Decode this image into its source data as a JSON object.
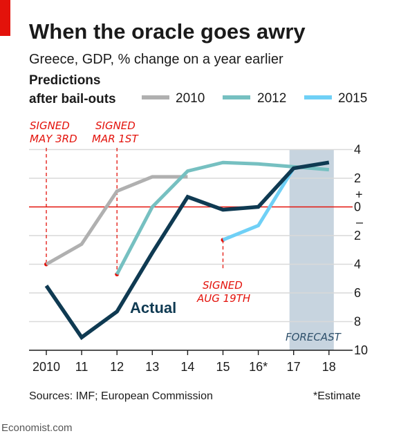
{
  "title": "When the oracle goes awry",
  "subtitle": "Greece, GDP, % change on a year earlier",
  "legend": {
    "title_line1": "Predictions",
    "title_line2": "after bail-outs"
  },
  "annotations": {
    "signed_2010_line1": "SIGNED",
    "signed_2010_line2": "MAY 3RD",
    "signed_2012_line1": "SIGNED",
    "signed_2012_line2": "MAR 1ST",
    "signed_2015_line1": "SIGNED",
    "signed_2015_line2": "AUG 19TH",
    "forecast": "FORECAST",
    "actual": "Actual"
  },
  "source": "Sources: IMF; European Commission",
  "footnote": "*Estimate",
  "brand": "Economist.com",
  "colors": {
    "accent_red": "#e3120b",
    "series_2010": "#b0b0b0",
    "series_2012": "#76c0c1",
    "series_2015": "#6fd0f6",
    "series_actual": "#0f3a52",
    "forecast_band": "#c7d4df",
    "gridline": "#d9d9d9"
  },
  "chart_data": {
    "type": "line",
    "x_categories": [
      "2010",
      "11",
      "12",
      "13",
      "14",
      "15",
      "16*",
      "17",
      "18"
    ],
    "y_tick_labels": [
      "4",
      "2",
      "0",
      "2",
      "4",
      "6",
      "8",
      "10"
    ],
    "y_tick_values": [
      4,
      2,
      0,
      -2,
      -4,
      -6,
      -8,
      -10
    ],
    "y_sign_labels": [
      "+",
      "–"
    ],
    "ylim": [
      -10,
      4
    ],
    "grid": true,
    "legend_position": "top",
    "forecast_range": [
      "17",
      "18"
    ],
    "series": [
      {
        "name": "2010",
        "key": "p2010",
        "x": [
          "2010",
          "11",
          "12",
          "13",
          "14"
        ],
        "values": [
          -4.0,
          -2.6,
          1.1,
          2.1,
          2.1
        ]
      },
      {
        "name": "2012",
        "key": "p2012",
        "x": [
          "12",
          "13",
          "14",
          "15",
          "16*",
          "17",
          "18"
        ],
        "values": [
          -4.7,
          0.0,
          2.5,
          3.1,
          3.0,
          2.8,
          2.6
        ]
      },
      {
        "name": "2015",
        "key": "p2015",
        "x": [
          "15",
          "16*",
          "17",
          "18"
        ],
        "values": [
          -2.3,
          -1.3,
          2.7,
          3.1
        ]
      },
      {
        "name": "Actual",
        "key": "actual",
        "x": [
          "2010",
          "11",
          "12",
          "13",
          "14",
          "15",
          "16*",
          "17",
          "18"
        ],
        "values": [
          -5.5,
          -9.1,
          -7.3,
          -3.2,
          0.7,
          -0.2,
          0.0,
          2.7,
          3.1
        ]
      }
    ],
    "signings": [
      {
        "key": "s2010",
        "x": "2010",
        "y": -4.0
      },
      {
        "key": "s2012",
        "x": "12",
        "y": -4.7
      },
      {
        "key": "s2015",
        "x": "15",
        "y": -2.3
      }
    ]
  }
}
